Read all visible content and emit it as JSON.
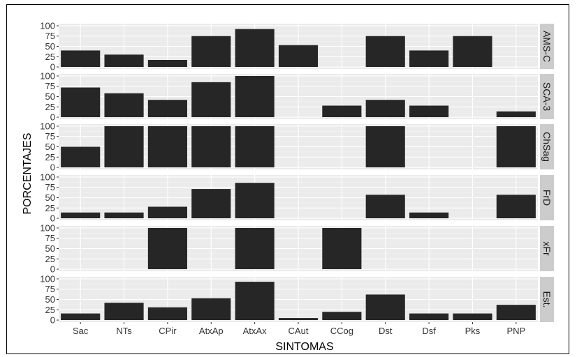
{
  "chart_data": {
    "type": "bar",
    "layout": "faceted-rows",
    "xlabel": "SINTOMAS",
    "ylabel": "PORCENTAJES",
    "ylim": [
      0,
      100
    ],
    "yticks": [
      0,
      25,
      50,
      75,
      100
    ],
    "grid": true,
    "categories": [
      "Sac",
      "NTs",
      "CPir",
      "AtxAp",
      "AtxAx",
      "CAut",
      "CCog",
      "Dst",
      "Dsf",
      "Pks",
      "PNP"
    ],
    "facets": [
      {
        "name": "AMS-C",
        "values": [
          40,
          30,
          17,
          75,
          92,
          53,
          0,
          75,
          40,
          75,
          0
        ]
      },
      {
        "name": "SCA-3",
        "values": [
          72,
          58,
          42,
          85,
          100,
          0,
          28,
          42,
          28,
          0,
          14
        ]
      },
      {
        "name": "ChSag",
        "values": [
          50,
          100,
          100,
          100,
          100,
          0,
          0,
          100,
          0,
          0,
          100
        ]
      },
      {
        "name": "FrD",
        "values": [
          14,
          14,
          28,
          71,
          86,
          0,
          0,
          57,
          14,
          0,
          57
        ]
      },
      {
        "name": "xFr",
        "values": [
          0,
          0,
          100,
          0,
          100,
          0,
          100,
          0,
          0,
          0,
          0
        ]
      },
      {
        "name": "Est.",
        "values": [
          16,
          42,
          31,
          53,
          93,
          5,
          20,
          62,
          16,
          16,
          37
        ]
      }
    ]
  },
  "colors": {
    "bar": "#262626",
    "panel_bg": "#ebebeb",
    "grid_major": "#ffffff",
    "grid_minor": "#f4f4f4",
    "strip_bg": "#cccccc"
  }
}
